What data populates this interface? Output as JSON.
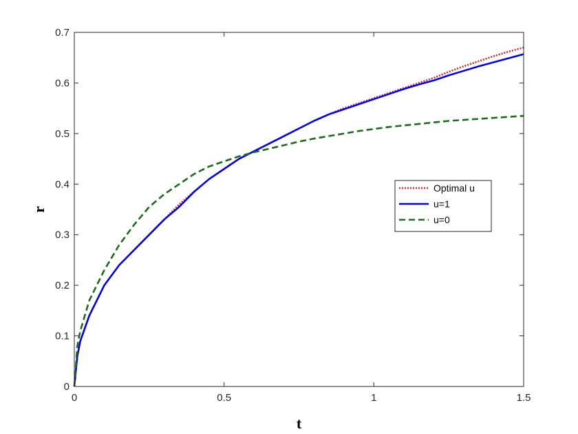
{
  "chart_data": {
    "type": "line",
    "title": "",
    "xlabel": "t",
    "ylabel": "r",
    "xlim": [
      0,
      1.5
    ],
    "ylim": [
      0,
      0.7
    ],
    "x_ticks": [
      0,
      0.5,
      1,
      1.5
    ],
    "x_tick_labels": [
      "0",
      "0.5",
      "1",
      "1.5"
    ],
    "y_ticks": [
      0,
      0.1,
      0.2,
      0.3,
      0.4,
      0.5,
      0.6,
      0.7
    ],
    "y_tick_labels": [
      "0",
      "0.1",
      "0.2",
      "0.3",
      "0.4",
      "0.5",
      "0.6",
      "0.7"
    ],
    "grid": false,
    "legend_position": "right",
    "series": [
      {
        "name": "Optimal u",
        "color": "#d62728",
        "style": "dotted",
        "x": [
          0,
          0.01,
          0.02,
          0.05,
          0.1,
          0.15,
          0.2,
          0.25,
          0.3,
          0.35,
          0.4,
          0.45,
          0.5,
          0.55,
          0.6,
          0.65,
          0.7,
          0.75,
          0.8,
          0.85,
          0.9,
          0.95,
          1.0,
          1.05,
          1.1,
          1.15,
          1.2,
          1.25,
          1.3,
          1.35,
          1.4,
          1.45,
          1.5
        ],
        "y": [
          0,
          0.06,
          0.09,
          0.14,
          0.2,
          0.24,
          0.27,
          0.3,
          0.33,
          0.36,
          0.385,
          0.41,
          0.43,
          0.45,
          0.465,
          0.48,
          0.495,
          0.51,
          0.525,
          0.538,
          0.55,
          0.56,
          0.57,
          0.58,
          0.59,
          0.6,
          0.61,
          0.622,
          0.633,
          0.643,
          0.653,
          0.662,
          0.67
        ]
      },
      {
        "name": "u=1",
        "color": "#0000ee",
        "style": "solid",
        "x": [
          0,
          0.01,
          0.02,
          0.05,
          0.1,
          0.15,
          0.2,
          0.25,
          0.3,
          0.35,
          0.4,
          0.45,
          0.5,
          0.55,
          0.6,
          0.65,
          0.7,
          0.75,
          0.8,
          0.85,
          0.9,
          0.95,
          1.0,
          1.05,
          1.1,
          1.15,
          1.2,
          1.25,
          1.3,
          1.35,
          1.4,
          1.45,
          1.5
        ],
        "y": [
          0,
          0.06,
          0.09,
          0.14,
          0.2,
          0.24,
          0.27,
          0.3,
          0.33,
          0.355,
          0.385,
          0.41,
          0.43,
          0.45,
          0.465,
          0.48,
          0.495,
          0.51,
          0.525,
          0.538,
          0.548,
          0.558,
          0.568,
          0.578,
          0.588,
          0.597,
          0.605,
          0.615,
          0.624,
          0.633,
          0.641,
          0.649,
          0.657
        ]
      },
      {
        "name": "u=0",
        "color": "#1b6b1b",
        "style": "dashed",
        "x": [
          0,
          0.01,
          0.02,
          0.05,
          0.1,
          0.15,
          0.2,
          0.25,
          0.3,
          0.35,
          0.4,
          0.45,
          0.5,
          0.55,
          0.6,
          0.65,
          0.7,
          0.75,
          0.8,
          0.85,
          0.9,
          0.95,
          1.0,
          1.05,
          1.1,
          1.15,
          1.2,
          1.25,
          1.3,
          1.35,
          1.4,
          1.45,
          1.5
        ],
        "y": [
          0,
          0.08,
          0.11,
          0.17,
          0.23,
          0.28,
          0.32,
          0.355,
          0.38,
          0.4,
          0.42,
          0.435,
          0.445,
          0.455,
          0.463,
          0.47,
          0.477,
          0.484,
          0.49,
          0.495,
          0.5,
          0.505,
          0.509,
          0.513,
          0.516,
          0.519,
          0.522,
          0.525,
          0.527,
          0.529,
          0.531,
          0.533,
          0.535
        ]
      }
    ]
  }
}
